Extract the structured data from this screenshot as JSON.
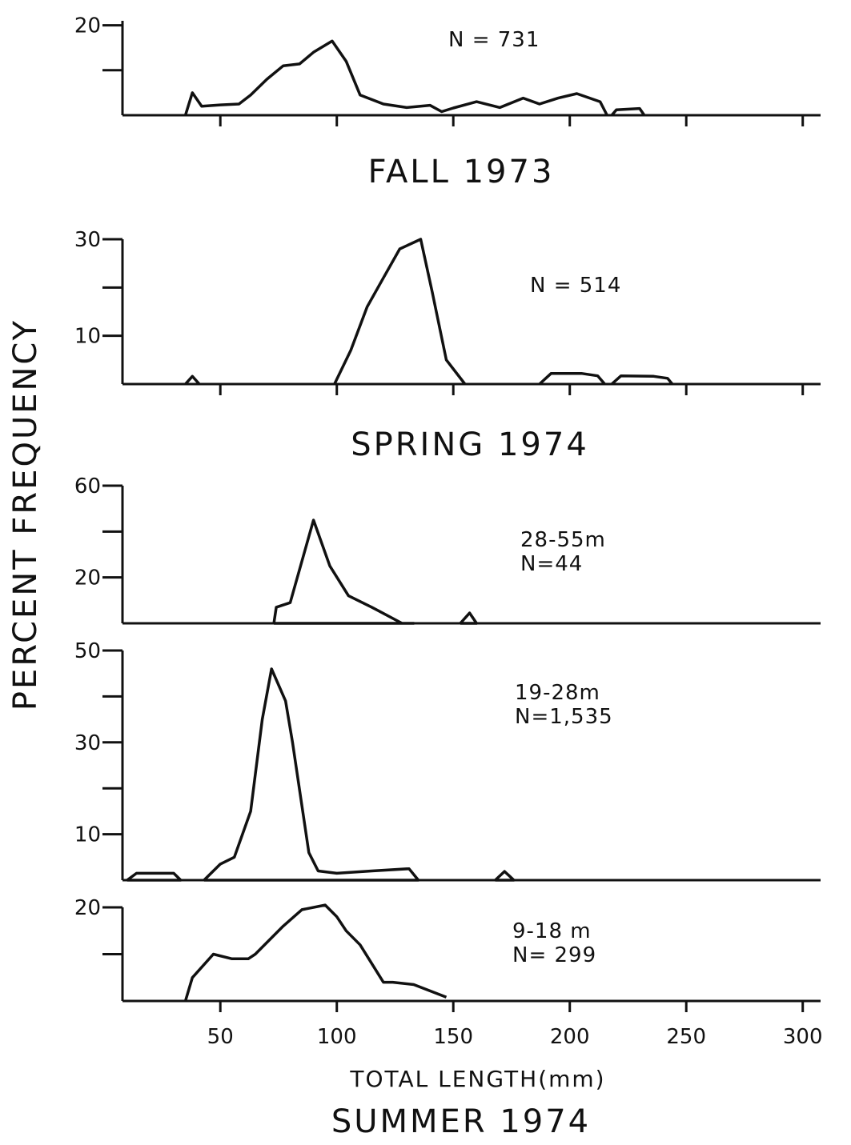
{
  "page": {
    "ylabel": "PERCENT FREQUENCY",
    "xlabel": "TOTAL LENGTH(mm)",
    "bottom_title": "SUMMER 1974"
  },
  "chart_data": [
    {
      "type": "line",
      "id": "fall",
      "title": "FALL 1973",
      "annotation": [
        "N = 731"
      ],
      "ylim": [
        0,
        21
      ],
      "yticks": [
        {
          "value": 20,
          "label": "20"
        },
        {
          "value": 10,
          "label": ""
        }
      ],
      "xticks": [
        50,
        100,
        150,
        200,
        250,
        300
      ],
      "xticklabels": [],
      "series": [
        {
          "x": [
            35,
            38,
            42,
            50,
            58,
            63,
            70,
            77,
            84,
            90,
            98,
            104,
            110,
            120,
            130,
            140,
            145,
            150,
            160,
            170,
            180,
            187,
            195,
            203,
            213,
            216
          ],
          "y": [
            0,
            5,
            2,
            2.3,
            2.5,
            4.5,
            8,
            11,
            11.4,
            14,
            16.5,
            12,
            4.5,
            2.5,
            1.7,
            2.2,
            0.8,
            1.6,
            3,
            1.7,
            3.8,
            2.5,
            3.8,
            4.8,
            3,
            0
          ]
        },
        {
          "x": [
            218,
            220,
            230,
            232
          ],
          "y": [
            0,
            1.2,
            1.5,
            0
          ]
        }
      ]
    },
    {
      "type": "line",
      "id": "spring",
      "title": "SPRING 1974",
      "annotation": [
        "N = 514"
      ],
      "ylim": [
        0,
        30
      ],
      "yticks": [
        {
          "value": 30,
          "label": "30"
        },
        {
          "value": 20,
          "label": ""
        },
        {
          "value": 10,
          "label": "10"
        }
      ],
      "xticks": [
        50,
        100,
        150,
        200,
        250,
        300
      ],
      "xticklabels": [],
      "series": [
        {
          "x": [
            35,
            38,
            41
          ],
          "y": [
            0,
            1.6,
            0
          ]
        },
        {
          "x": [
            99,
            106,
            113,
            120,
            127,
            136,
            141,
            147,
            155
          ],
          "y": [
            0,
            7,
            16,
            22,
            28,
            30,
            19,
            5,
            0
          ]
        },
        {
          "x": [
            187,
            192,
            205,
            212,
            215
          ],
          "y": [
            0,
            2.2,
            2.2,
            1.7,
            0
          ]
        },
        {
          "x": [
            218,
            222,
            236,
            242,
            244
          ],
          "y": [
            0,
            1.7,
            1.6,
            1.2,
            0
          ]
        }
      ]
    },
    {
      "type": "line",
      "id": "depth-28-55",
      "annotation": [
        "28-55m",
        "N=44"
      ],
      "ylim": [
        0,
        60
      ],
      "yticks": [
        {
          "value": 60,
          "label": "60"
        },
        {
          "value": 40,
          "label": ""
        },
        {
          "value": 20,
          "label": "20"
        }
      ],
      "xticks": [],
      "xticklabels": [],
      "series": [
        {
          "x": [
            73,
            74,
            80,
            90,
            97,
            105,
            115,
            128,
            133,
            73
          ],
          "y": [
            0,
            7,
            9,
            45,
            25,
            12,
            7,
            0,
            0,
            0
          ]
        },
        {
          "x": [
            153,
            157,
            160,
            153
          ],
          "y": [
            0,
            4.5,
            0,
            0
          ]
        }
      ]
    },
    {
      "type": "line",
      "id": "depth-19-28",
      "annotation": [
        "19-28m",
        "N=1,535"
      ],
      "ylim": [
        0,
        50
      ],
      "yticks": [
        {
          "value": 50,
          "label": "50"
        },
        {
          "value": 40,
          "label": ""
        },
        {
          "value": 30,
          "label": "30"
        },
        {
          "value": 20,
          "label": ""
        },
        {
          "value": 10,
          "label": "10"
        }
      ],
      "xticks": [],
      "xticklabels": [],
      "series": [
        {
          "x": [
            10,
            14,
            30,
            33,
            10
          ],
          "y": [
            0,
            1.5,
            1.5,
            0,
            0
          ]
        },
        {
          "x": [
            43,
            50,
            56,
            63,
            68,
            72,
            78,
            81,
            88,
            92,
            100,
            115,
            131,
            135,
            43
          ],
          "y": [
            0,
            3.5,
            5,
            15,
            35,
            46,
            39,
            30,
            6,
            2,
            1.5,
            2,
            2.5,
            0,
            0
          ]
        },
        {
          "x": [
            168,
            172,
            176,
            168
          ],
          "y": [
            0,
            1.9,
            0,
            0
          ]
        }
      ]
    },
    {
      "type": "line",
      "id": "depth-9-18",
      "annotation": [
        "9-18 m",
        "N= 299"
      ],
      "ylim": [
        0,
        20
      ],
      "yticks": [
        {
          "value": 20,
          "label": "20"
        },
        {
          "value": 10,
          "label": ""
        }
      ],
      "xticks": [
        50,
        100,
        150,
        200,
        250,
        300
      ],
      "xticklabels": [
        "50",
        "100",
        "150",
        "200",
        "250",
        "300"
      ],
      "series": [
        {
          "x": [
            35,
            38,
            47,
            55,
            62,
            65,
            77,
            85,
            95,
            100,
            104,
            110,
            120,
            124,
            133,
            147
          ],
          "y": [
            0,
            5,
            10,
            9,
            9,
            10,
            16,
            19.5,
            20.5,
            18,
            15,
            12,
            4,
            4,
            3.5,
            0.8
          ]
        }
      ]
    }
  ]
}
